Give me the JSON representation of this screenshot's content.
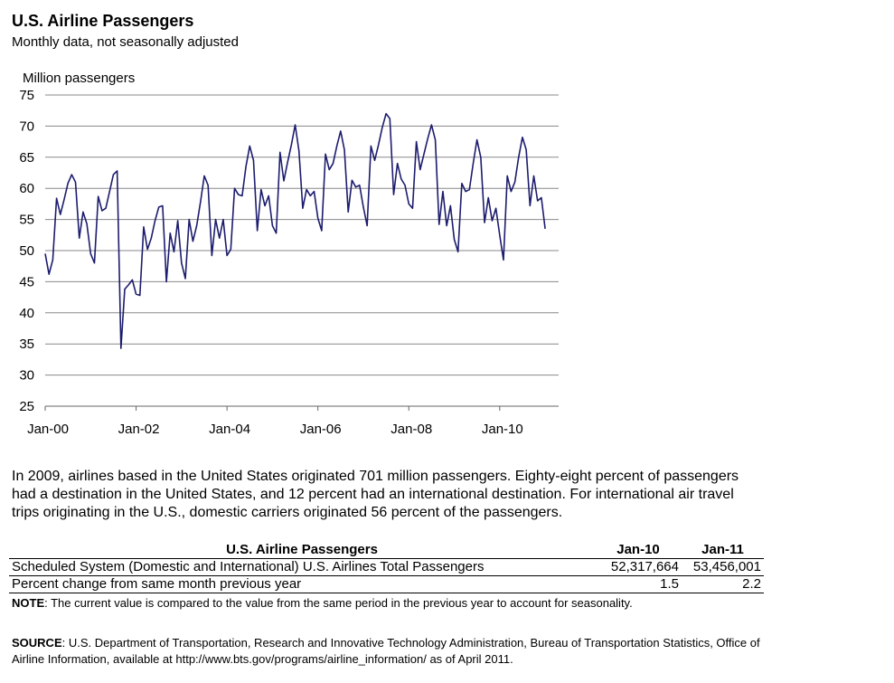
{
  "chart_data": {
    "type": "line",
    "title": "U.S. Airline Passengers",
    "subtitle": "Monthly data, not seasonally adjusted",
    "y_label": "Million passengers",
    "categories": [
      "Jan-00",
      null,
      null,
      null,
      null,
      null,
      null,
      null,
      null,
      null,
      null,
      null,
      null,
      null,
      null,
      null,
      null,
      null,
      null,
      null,
      null,
      null,
      null,
      null,
      "Jan-02",
      null,
      null,
      null,
      null,
      null,
      null,
      null,
      null,
      null,
      null,
      null,
      null,
      null,
      null,
      null,
      null,
      null,
      null,
      null,
      null,
      null,
      null,
      null,
      "Jan-04",
      null,
      null,
      null,
      null,
      null,
      null,
      null,
      null,
      null,
      null,
      null,
      null,
      null,
      null,
      null,
      null,
      null,
      null,
      null,
      null,
      null,
      null,
      null,
      "Jan-06",
      null,
      null,
      null,
      null,
      null,
      null,
      null,
      null,
      null,
      null,
      null,
      null,
      null,
      null,
      null,
      null,
      null,
      null,
      null,
      null,
      null,
      null,
      null,
      "Jan-08",
      null,
      null,
      null,
      null,
      null,
      null,
      null,
      null,
      null,
      null,
      null,
      null,
      null,
      null,
      null,
      null,
      null,
      null,
      null,
      null,
      null,
      null,
      null,
      "Jan-10",
      null,
      null,
      null,
      null,
      null,
      null,
      null,
      null,
      null,
      null,
      null,
      null
    ],
    "values": [
      49.5,
      46.2,
      48.5,
      58.4,
      55.8,
      58.2,
      60.8,
      62.2,
      61.0,
      52.0,
      56.2,
      54.3,
      49.5,
      48.0,
      58.7,
      56.4,
      56.8,
      59.5,
      62.2,
      62.8,
      34.3,
      43.8,
      44.5,
      45.3,
      43.0,
      42.8,
      53.8,
      50.2,
      52.0,
      54.8,
      57.0,
      57.2,
      45.0,
      52.8,
      49.8,
      54.8,
      48.0,
      45.5,
      55.0,
      51.5,
      54.0,
      57.8,
      62.0,
      60.5,
      49.2,
      55.0,
      52.0,
      55.0,
      49.2,
      50.2,
      60.0,
      59.0,
      58.8,
      63.5,
      66.8,
      64.5,
      53.2,
      59.8,
      57.2,
      58.8,
      54.0,
      52.8,
      65.8,
      61.2,
      64.2,
      67.0,
      70.2,
      66.0,
      56.8,
      59.8,
      58.8,
      59.5,
      55.2,
      53.2,
      65.5,
      63.0,
      64.0,
      66.8,
      69.2,
      66.2,
      56.2,
      61.3,
      60.2,
      60.5,
      57.0,
      54.0,
      66.8,
      64.5,
      67.0,
      69.8,
      72.0,
      71.2,
      59.0,
      64.0,
      61.5,
      60.5,
      57.5,
      56.8,
      67.5,
      63.0,
      65.5,
      68.0,
      70.2,
      67.8,
      54.2,
      59.5,
      54.0,
      57.2,
      51.8,
      49.8,
      60.8,
      59.5,
      59.8,
      64.0,
      67.8,
      65.0,
      54.5,
      58.5,
      54.8,
      56.8,
      52.5,
      48.5,
      62.0,
      59.5,
      61.0,
      65.0,
      68.2,
      66.2,
      57.2,
      62.0,
      58.0,
      58.5,
      53.5
    ],
    "color": "#1c1c6e",
    "ylim": [
      25,
      75
    ],
    "yticks": [
      25,
      30,
      35,
      40,
      45,
      50,
      55,
      60,
      65,
      70,
      75
    ],
    "grid": true
  },
  "paragraph": "In 2009, airlines based in the United States originated 701 million passengers. Eighty-eight percent of passengers had a destination in the United States, and 12 percent had an international destination. For international air travel trips originating in the U.S., domestic carriers originated 56 percent of the passengers.",
  "table": {
    "columns": [
      "U.S. Airline Passengers",
      "Jan-10",
      "Jan-11"
    ],
    "rows": [
      [
        "Scheduled System (Domestic and International) U.S. Airlines Total Passengers",
        "52,317,664",
        "53,456,001"
      ],
      [
        "Percent change from same month previous year",
        "1.5",
        "2.2"
      ]
    ]
  },
  "note": {
    "label": "NOTE",
    "text": ": The current value is compared to the value from the same period in the previous year to account for seasonality."
  },
  "source": {
    "label": "SOURCE",
    "text": ":  U.S. Department of Transportation, Research and Innovative Technology Administration, Bureau of Transportation Statistics, Office of Airline Information, available at http://www.bts.gov/programs/airline_information/ as of April 2011."
  }
}
